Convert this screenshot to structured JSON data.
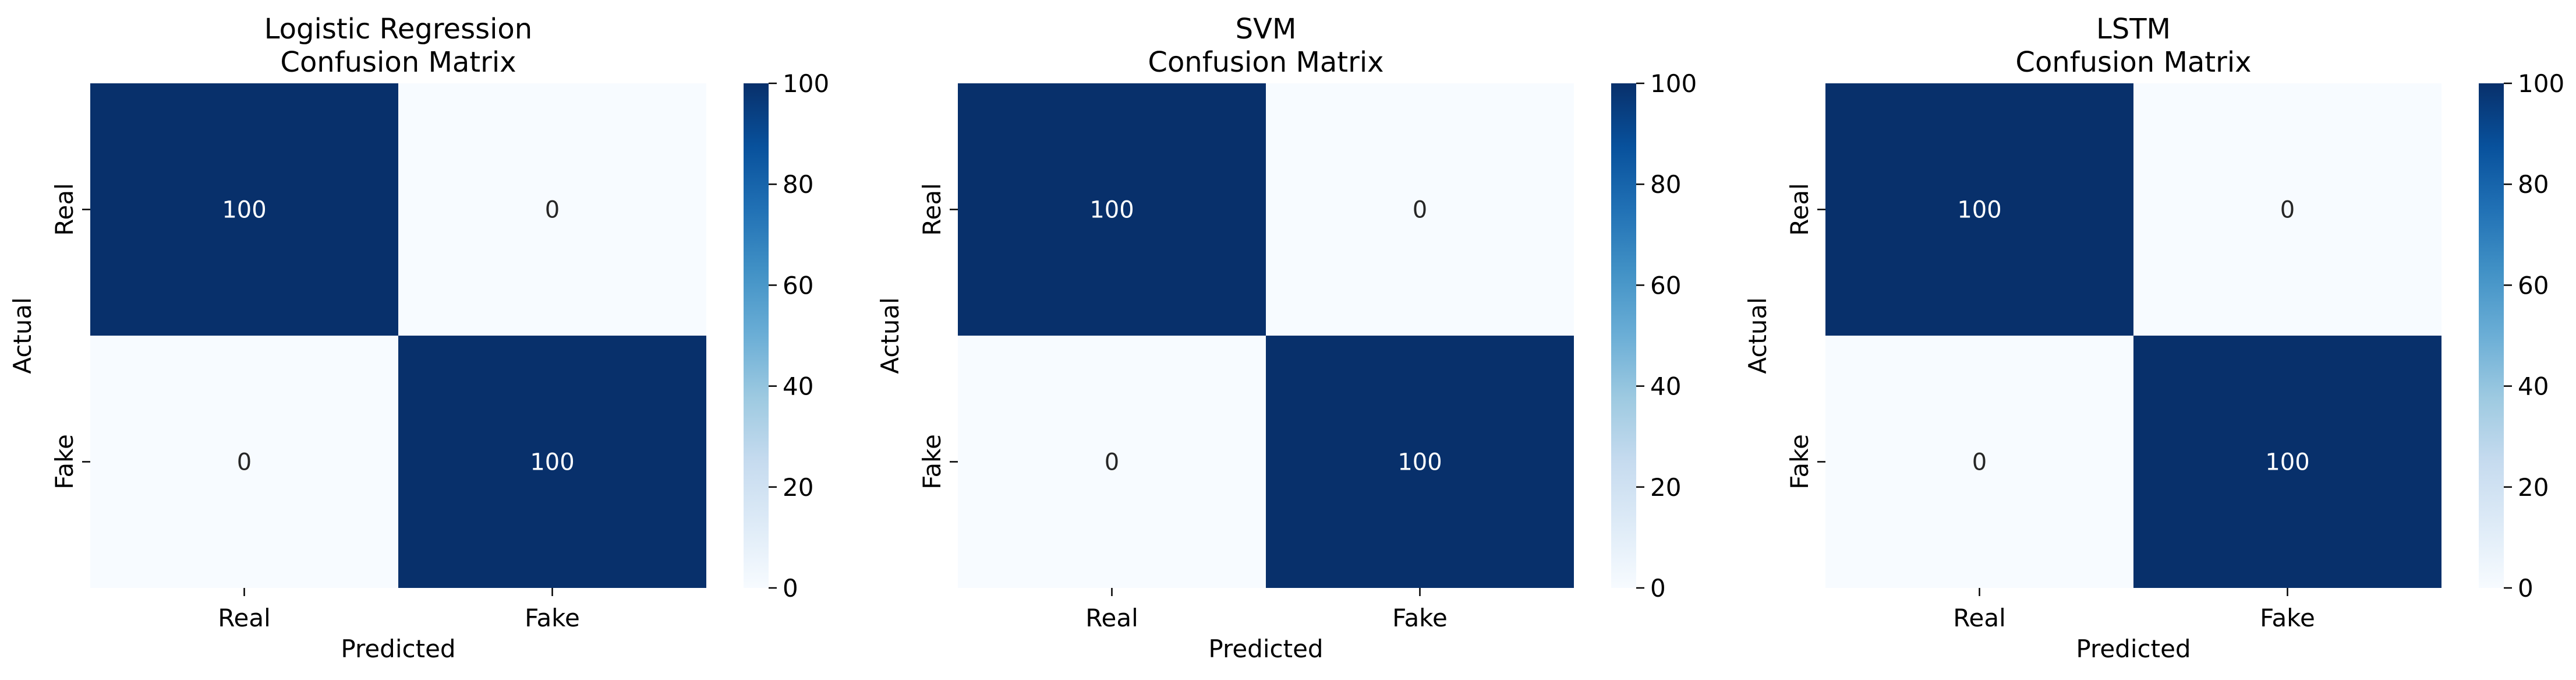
{
  "chart_data": [
    {
      "type": "heatmap",
      "title": "Logistic Regression\nConfusion Matrix",
      "xlabel": "Predicted",
      "ylabel": "Actual",
      "x_categories": [
        "Real",
        "Fake"
      ],
      "y_categories": [
        "Real",
        "Fake"
      ],
      "values": [
        [
          100,
          0
        ],
        [
          0,
          100
        ]
      ],
      "colorbar": {
        "min": 0,
        "max": 100,
        "ticks": [
          0,
          20,
          40,
          60,
          80,
          100
        ]
      },
      "colormap": "Blues"
    },
    {
      "type": "heatmap",
      "title": "SVM\nConfusion Matrix",
      "xlabel": "Predicted",
      "ylabel": "Actual",
      "x_categories": [
        "Real",
        "Fake"
      ],
      "y_categories": [
        "Real",
        "Fake"
      ],
      "values": [
        [
          100,
          0
        ],
        [
          0,
          100
        ]
      ],
      "colorbar": {
        "min": 0,
        "max": 100,
        "ticks": [
          0,
          20,
          40,
          60,
          80,
          100
        ]
      },
      "colormap": "Blues"
    },
    {
      "type": "heatmap",
      "title": "LSTM\nConfusion Matrix",
      "xlabel": "Predicted",
      "ylabel": "Actual",
      "x_categories": [
        "Real",
        "Fake"
      ],
      "y_categories": [
        "Real",
        "Fake"
      ],
      "values": [
        [
          100,
          0
        ],
        [
          0,
          100
        ]
      ],
      "colorbar": {
        "min": 0,
        "max": 100,
        "ticks": [
          0,
          20,
          40,
          60,
          80,
          100
        ]
      },
      "colormap": "Blues"
    }
  ],
  "colors": {
    "low": "#f7fbff",
    "high": "#08306b",
    "text_on_dark": "#ffffff",
    "text_on_light": "#262626"
  }
}
